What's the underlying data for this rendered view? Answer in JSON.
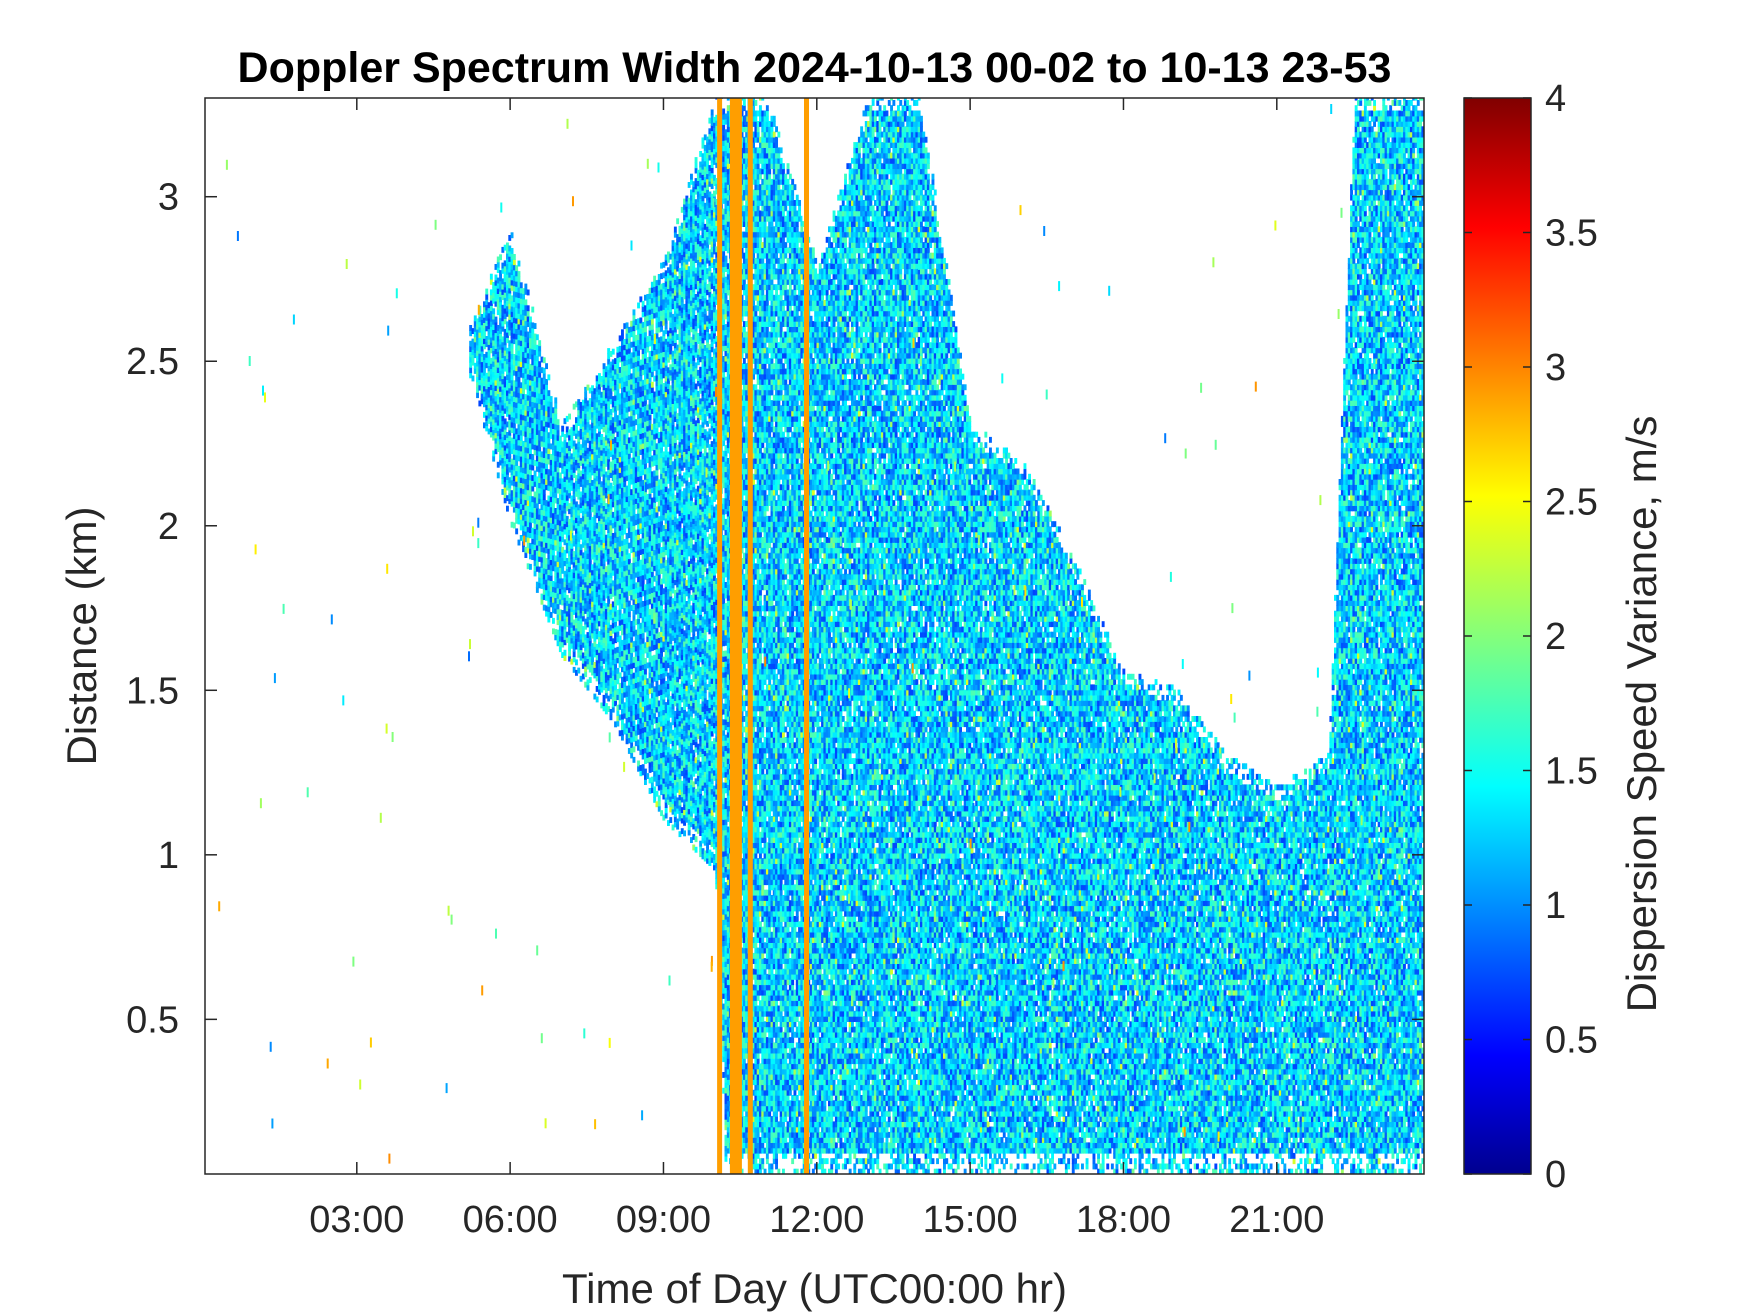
{
  "chart_data": {
    "type": "heatmap",
    "title": "Doppler Spectrum Width 2024-10-13 00-02 to 10-13 23-53",
    "xlabel": "Time of Day (UTC00:00 hr)",
    "ylabel": "Distance (km)",
    "colorbar_label": "Dispersion Speed Variance, m/s",
    "xlim_hours": [
      0.03,
      23.88
    ],
    "ylim_km": [
      0.03,
      3.3
    ],
    "x_ticks": [
      {
        "value": 3,
        "label": "03:00"
      },
      {
        "value": 6,
        "label": "06:00"
      },
      {
        "value": 9,
        "label": "09:00"
      },
      {
        "value": 12,
        "label": "12:00"
      },
      {
        "value": 15,
        "label": "15:00"
      },
      {
        "value": 18,
        "label": "18:00"
      },
      {
        "value": 21,
        "label": "21:00"
      }
    ],
    "y_ticks": [
      {
        "value": 0.5,
        "label": "0.5"
      },
      {
        "value": 1,
        "label": "1"
      },
      {
        "value": 1.5,
        "label": "1.5"
      },
      {
        "value": 2,
        "label": "2"
      },
      {
        "value": 2.5,
        "label": "2.5"
      },
      {
        "value": 3,
        "label": "3"
      }
    ],
    "colorbar_range": [
      0,
      4
    ],
    "colorbar_ticks": [
      {
        "value": 0,
        "label": "0"
      },
      {
        "value": 0.5,
        "label": "0.5"
      },
      {
        "value": 1,
        "label": "1"
      },
      {
        "value": 1.5,
        "label": "1.5"
      },
      {
        "value": 2,
        "label": "2"
      },
      {
        "value": 2.5,
        "label": "2.5"
      },
      {
        "value": 3,
        "label": "3"
      },
      {
        "value": 3.5,
        "label": "3.5"
      },
      {
        "value": 4,
        "label": "4"
      }
    ],
    "colormap": "jet",
    "colormap_stops": [
      "#00008f",
      "#0000ff",
      "#00ffff",
      "#ffff00",
      "#ff0000",
      "#800000"
    ],
    "echo_top_km": [
      [
        5.2,
        2.6
      ],
      [
        6.0,
        2.9
      ],
      [
        7.0,
        2.3
      ],
      [
        8.0,
        2.55
      ],
      [
        9.0,
        2.8
      ],
      [
        10.0,
        3.3
      ],
      [
        11.0,
        3.3
      ],
      [
        12.0,
        2.8
      ],
      [
        13.0,
        3.3
      ],
      [
        14.0,
        3.3
      ],
      [
        15.0,
        2.3
      ],
      [
        16.0,
        2.2
      ],
      [
        17.0,
        1.9
      ],
      [
        18.0,
        1.55
      ],
      [
        19.0,
        1.5
      ],
      [
        20.0,
        1.3
      ],
      [
        21.0,
        1.2
      ],
      [
        22.0,
        1.3
      ],
      [
        22.5,
        3.3
      ],
      [
        23.88,
        3.3
      ]
    ],
    "echo_base_km": [
      [
        5.2,
        2.45
      ],
      [
        6.0,
        2.0
      ],
      [
        7.0,
        1.6
      ],
      [
        8.0,
        1.4
      ],
      [
        9.0,
        1.1
      ],
      [
        10.0,
        0.95
      ],
      [
        10.2,
        0.03
      ],
      [
        23.88,
        0.03
      ]
    ],
    "high_variance_columns_hours": [
      10.05,
      10.3,
      10.4,
      10.65,
      11.75
    ],
    "high_variance_value": 2.9,
    "typical_value_range": [
      0.7,
      1.8
    ]
  }
}
